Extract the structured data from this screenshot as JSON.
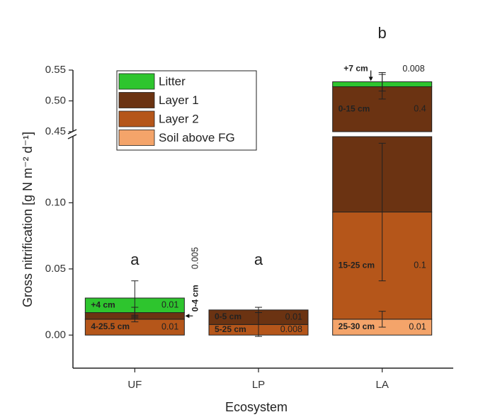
{
  "chart_data": {
    "type": "stacked_bar",
    "xlabel": "Ecosystem",
    "ylabel": "Gross nitrification [g N m⁻² d⁻¹]",
    "categories": [
      "UF",
      "LP",
      "LA"
    ],
    "group_labels": [
      "a",
      "a",
      "b"
    ],
    "series": [
      {
        "name": "Litter",
        "color": "#2ec52e",
        "values": [
          0.011,
          null,
          0.008
        ],
        "errors": [
          0.013,
          null,
          0.015
        ],
        "value_labels": [
          "0.01",
          null,
          "0.008"
        ],
        "depths": [
          "+4 cm",
          null,
          "+7 cm"
        ]
      },
      {
        "name": "Layer 1",
        "color": "#6b3312",
        "values": [
          0.005,
          0.011,
          0.43
        ],
        "errors": [
          0.004,
          0.002,
          0.02
        ],
        "value_labels": [
          "0.005",
          "0.01",
          "0.4"
        ],
        "depths": [
          "0-4 cm",
          "0-5 cm",
          "0-15 cm"
        ]
      },
      {
        "name": "Layer 2",
        "color": "#b5561a",
        "values": [
          0.012,
          0.008,
          0.081
        ],
        "errors": [
          0.002,
          0.009,
          0.052
        ],
        "value_labels": [
          "0.01",
          "0.008",
          "0.1"
        ],
        "depths": [
          "4-25.5 cm",
          "5-25 cm",
          "15-25 cm"
        ]
      },
      {
        "name": "Soil above FG",
        "color": "#f4a46a",
        "values": [
          null,
          null,
          0.012
        ],
        "errors": [
          null,
          null,
          0.006
        ],
        "value_labels": [
          null,
          null,
          "0.01"
        ],
        "depths": [
          null,
          null,
          "25-30 cm"
        ]
      }
    ],
    "ylim": [
      -0.025,
      0.55
    ],
    "ybreak": [
      0.15,
      0.45
    ],
    "yticks": [
      {
        "value": 0,
        "label": "0.00"
      },
      0.05,
      {
        "value": 0.1,
        "label": "0.10"
      },
      0.45,
      {
        "value": 0.5,
        "label": "0.50"
      },
      0.55
    ],
    "legend": "upper left"
  }
}
